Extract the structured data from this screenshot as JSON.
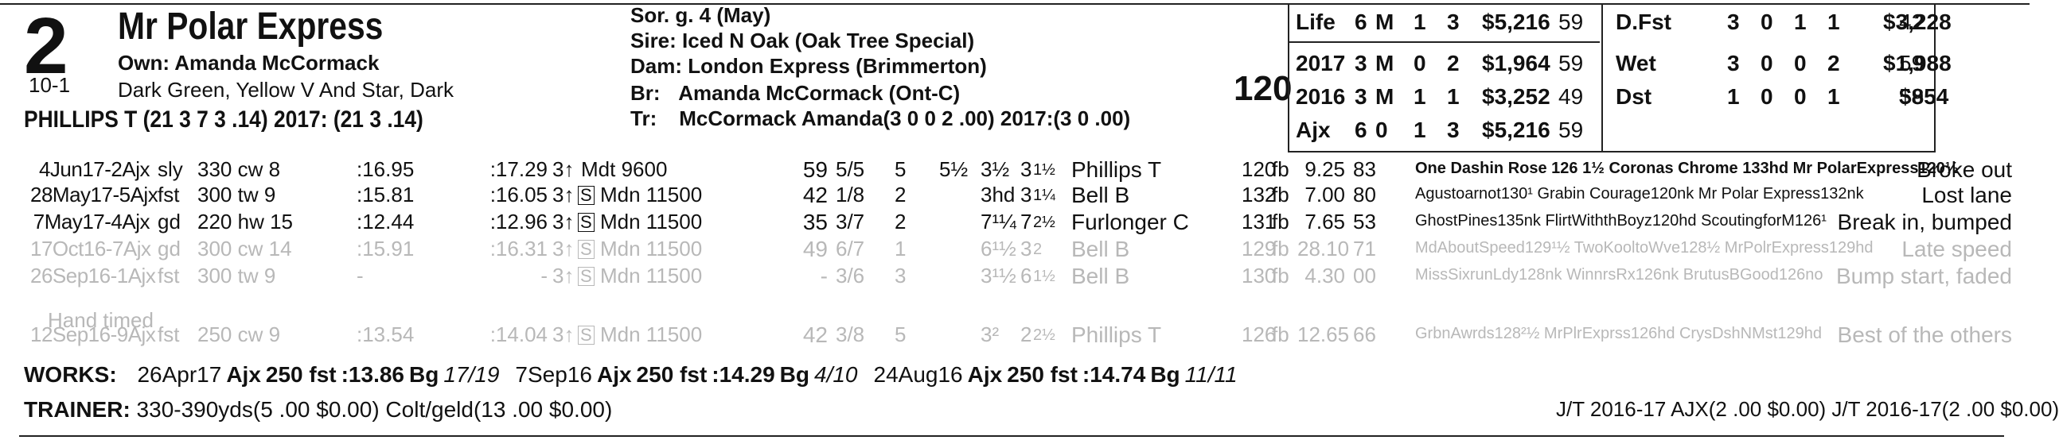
{
  "program_number": "2",
  "horse_name": "Mr Polar Express",
  "owner": "Own: Amanda McCormack",
  "odds": "10-1",
  "silks": "Dark Green, Yellow V And Star, Dark",
  "jockey_line": "PHILLIPS T (21 3 7 3 .14) 2017: (21 3 .14)",
  "pedigree": {
    "sex_age": "Sor. g. 4 (May)",
    "sire_label": "Sire:",
    "sire": "Iced N Oak (Oak Tree Special)",
    "dam_label": "Dam:",
    "dam": "London Express (Brimmerton)",
    "breeder_label": "Br:",
    "breeder": "Amanda McCormack (Ont-C)",
    "trainer_label": "Tr:",
    "trainer": "McCormack Amanda(3 0 0 2 .00)  2017:(3 0 .00)"
  },
  "weight": "120",
  "stats_left": [
    {
      "label": "Life",
      "st": "6",
      "m": "M",
      "a": "1",
      "b": "3",
      "earn": "$5,216",
      "fig": "59"
    },
    {
      "label": "2017",
      "st": "3",
      "m": "M",
      "a": "0",
      "b": "2",
      "earn": "$1,964",
      "fig": "59"
    },
    {
      "label": "2016",
      "st": "3",
      "m": "M",
      "a": "1",
      "b": "1",
      "earn": "$3,252",
      "fig": "49"
    },
    {
      "label": "Ajx",
      "st": "6",
      "m": "0",
      "a": "1",
      "b": "3",
      "earn": "$5,216",
      "fig": "59"
    }
  ],
  "stats_right": [
    {
      "label": "D.Fst",
      "st": "3",
      "w": "0",
      "p": "1",
      "s": "1",
      "earn": "$3,228",
      "fig": "42"
    },
    {
      "label": "Wet",
      "st": "3",
      "w": "0",
      "p": "0",
      "s": "2",
      "earn": "$1,988",
      "fig": "59"
    },
    {
      "label": "Dst",
      "st": "1",
      "w": "0",
      "p": "0",
      "s": "1",
      "earn": "$854",
      "fig": "59"
    }
  ],
  "races": [
    {
      "date": "4Jun17-2Ajx",
      "cond": "sly",
      "dist": "330 cw 8",
      "f1": ":16.95",
      "f2": ":17.29",
      "age": "3↑",
      "s": "",
      "race": "Mdt 9600",
      "fig": "59",
      "pp": "5/5",
      "st": "5",
      "c1": "5½",
      "c2": "3½",
      "fin": "3½1½",
      "fin_a": "3",
      "fin_b": "1½",
      "jockey": "Phillips T",
      "wt": "120",
      "med": "fb",
      "odds": "9.25",
      "spd": "83",
      "comment": "One Dashin Rose 126 1½ Coronas Chrome 133hd Mr PolarExpress120½",
      "remark": "Broke out",
      "gray": false
    },
    {
      "date": "28May17-5Ajx",
      "cond": "fst",
      "dist": "300 tw 9",
      "f1": ":15.81",
      "f2": ":16.05",
      "age": "3↑",
      "s": "S",
      "race": "Mdn 11500",
      "fig": "42",
      "pp": "1/8",
      "st": "2",
      "c1": "",
      "c2": "3hd",
      "fin": "",
      "fin_a": "3",
      "fin_b": "1¼",
      "jockey": "Bell B",
      "wt": "132",
      "med": "fb",
      "odds": "7.00",
      "spd": "80",
      "comment": "Agustoarnot130¹ Grabin Courage120nk Mr Polar Express132nk",
      "remark": "Lost lane",
      "gray": false
    },
    {
      "date": "7May17-4Ajx",
      "cond": "gd",
      "dist": "220 hw 15",
      "f1": ":12.44",
      "f2": ":12.96",
      "age": "3↑",
      "s": "S",
      "race": "Mdn 11500",
      "fig": "35",
      "pp": "3/7",
      "st": "2",
      "c1": "",
      "c2": "7¹¼",
      "fin": "",
      "fin_a": "7",
      "fin_b": "2½",
      "jockey": "Furlonger C",
      "wt": "131",
      "med": "fb",
      "odds": "7.65",
      "spd": "53",
      "comment": "GhostPines135nk FlirtWiththBoyz120hd ScoutingforM126¹",
      "remark": "Break in, bumped",
      "gray": false
    },
    {
      "date": "17Oct16-7Ajx",
      "cond": "gd",
      "dist": "300 cw 14",
      "f1": ":15.91",
      "f2": ":16.31",
      "age": "3↑",
      "s": "S",
      "race": "Mdn 11500",
      "fig": "49",
      "pp": "6/7",
      "st": "1",
      "c1": "",
      "c2": "6¹½",
      "fin": "",
      "fin_a": "3",
      "fin_b": "2",
      "jockey": "Bell B",
      "wt": "129",
      "med": "fb",
      "odds": "28.10",
      "spd": "71",
      "comment": "MdAboutSpeed129¹½ TwoKooltoWve128½ MrPolrExpress129hd",
      "remark": "Late speed",
      "gray": true
    },
    {
      "date": "26Sep16-1Ajx",
      "cond": "fst",
      "dist": "300 tw 9",
      "f1": "-",
      "f2": "-",
      "age": "3↑",
      "s": "S",
      "race": "Mdn 11500",
      "fig": "-",
      "pp": "3/6",
      "st": "3",
      "c1": "",
      "c2": "3¹½",
      "fin": "",
      "fin_a": "6",
      "fin_b": "1½",
      "jockey": "Bell B",
      "wt": "130",
      "med": "fb",
      "odds": "4.30",
      "spd": "00",
      "comment": "MissSixrunLdy128nk WinnrsRx126nk BrutusBGood126no",
      "remark": "Bump start, faded",
      "gray": true
    },
    {
      "date": "12Sep16-9Ajx",
      "cond": "fst",
      "dist": "250 cw 9",
      "f1": ":13.54",
      "f2": ":14.04",
      "age": "3↑",
      "s": "S",
      "race": "Mdn 11500",
      "fig": "42",
      "pp": "3/8",
      "st": "5",
      "c1": "",
      "c2": "3²",
      "fin": "",
      "fin_a": "2",
      "fin_b": "2½",
      "jockey": "Phillips T",
      "wt": "126",
      "med": "fb",
      "odds": "12.65",
      "spd": "66",
      "comment": "GrbnAwrds128²½ MrPlrExprss126hd CrysDshNMst129hd",
      "remark": "Best of the others",
      "gray": true
    }
  ],
  "hand_timed": "Hand timed",
  "works_label": "WORKS:",
  "works": [
    {
      "date": "26Apr17",
      "trk": "Ajx",
      "dist": "250 fst",
      "time": ":13.86",
      "grade": "Bg",
      "rank": "17/19"
    },
    {
      "date": "7Sep16",
      "trk": "Ajx",
      "dist": "250 fst",
      "time": ":14.29",
      "grade": "Bg",
      "rank": "4/10"
    },
    {
      "date": "24Aug16",
      "trk": "Ajx",
      "dist": "250 fst",
      "time": ":14.74",
      "grade": "Bg",
      "rank": "11/11"
    }
  ],
  "trainer_label": "TRAINER:",
  "trainer_stats": "330-390yds(5 .00 $0.00) Colt/geld(13 .00 $0.00)",
  "jt_stats": "J/T 2016-17 AJX(2 .00 $0.00)  J/T 2016-17(2 .00 $0.00)"
}
